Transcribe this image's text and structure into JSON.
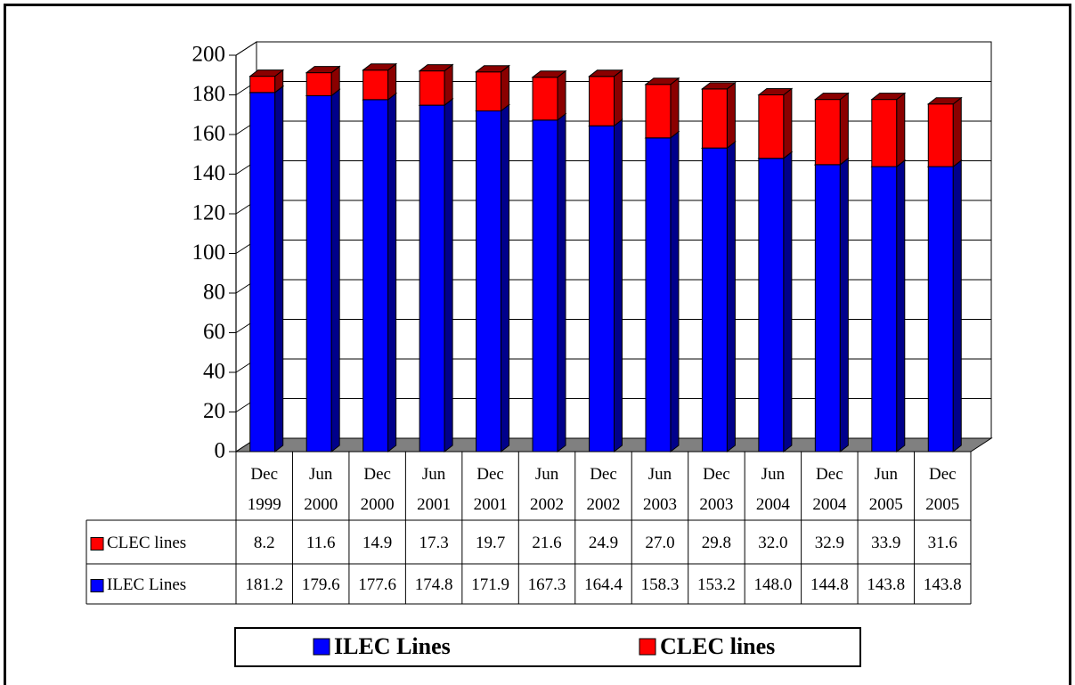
{
  "chart_data": {
    "type": "bar",
    "stacked": true,
    "categories": [
      "Dec 1999",
      "Jun 2000",
      "Dec 2000",
      "Jun 2001",
      "Dec 2001",
      "Jun 2002",
      "Dec 2002",
      "Jun 2003",
      "Dec 2003",
      "Jun 2004",
      "Dec 2004",
      "Jun 2005",
      "Dec 2005"
    ],
    "category_lines": [
      [
        "Dec",
        "1999"
      ],
      [
        "Jun",
        "2000"
      ],
      [
        "Dec",
        "2000"
      ],
      [
        "Jun",
        "2001"
      ],
      [
        "Dec",
        "2001"
      ],
      [
        "Jun",
        "2002"
      ],
      [
        "Dec",
        "2002"
      ],
      [
        "Jun",
        "2003"
      ],
      [
        "Dec",
        "2003"
      ],
      [
        "Jun",
        "2004"
      ],
      [
        "Dec",
        "2004"
      ],
      [
        "Jun",
        "2005"
      ],
      [
        "Dec",
        "2005"
      ]
    ],
    "series": [
      {
        "name": "ILEC Lines",
        "color": "#0000ff",
        "side_color": "#00008b",
        "values": [
          181.2,
          179.6,
          177.6,
          174.8,
          171.9,
          167.3,
          164.4,
          158.3,
          153.2,
          148.0,
          144.8,
          143.8,
          143.8
        ],
        "value_labels": [
          "181.2",
          "179.6",
          "177.6",
          "174.8",
          "171.9",
          "167.3",
          "164.4",
          "158.3",
          "153.2",
          "148.0",
          "144.8",
          "143.8",
          "143.8"
        ]
      },
      {
        "name": "CLEC lines",
        "color": "#ff0000",
        "side_color": "#8b0000",
        "values": [
          8.2,
          11.6,
          14.9,
          17.3,
          19.7,
          21.6,
          24.9,
          27.0,
          29.8,
          32.0,
          32.9,
          33.9,
          31.6
        ],
        "value_labels": [
          "8.2",
          "11.6",
          "14.9",
          "17.3",
          "19.7",
          "21.6",
          "24.9",
          "27.0",
          "29.8",
          "32.0",
          "32.9",
          "33.9",
          "31.6"
        ]
      }
    ],
    "table_rows": [
      "CLEC lines",
      "ILEC Lines"
    ],
    "ylim": [
      0,
      200
    ],
    "yticks": [
      "0",
      "20",
      "40",
      "60",
      "80",
      "100",
      "120",
      "140",
      "160",
      "180",
      "200"
    ],
    "grid": true,
    "data_table": true,
    "legend_position": "bottom",
    "legend": [
      "ILEC Lines",
      "CLEC lines"
    ],
    "title": "",
    "xlabel": "",
    "ylabel": ""
  }
}
